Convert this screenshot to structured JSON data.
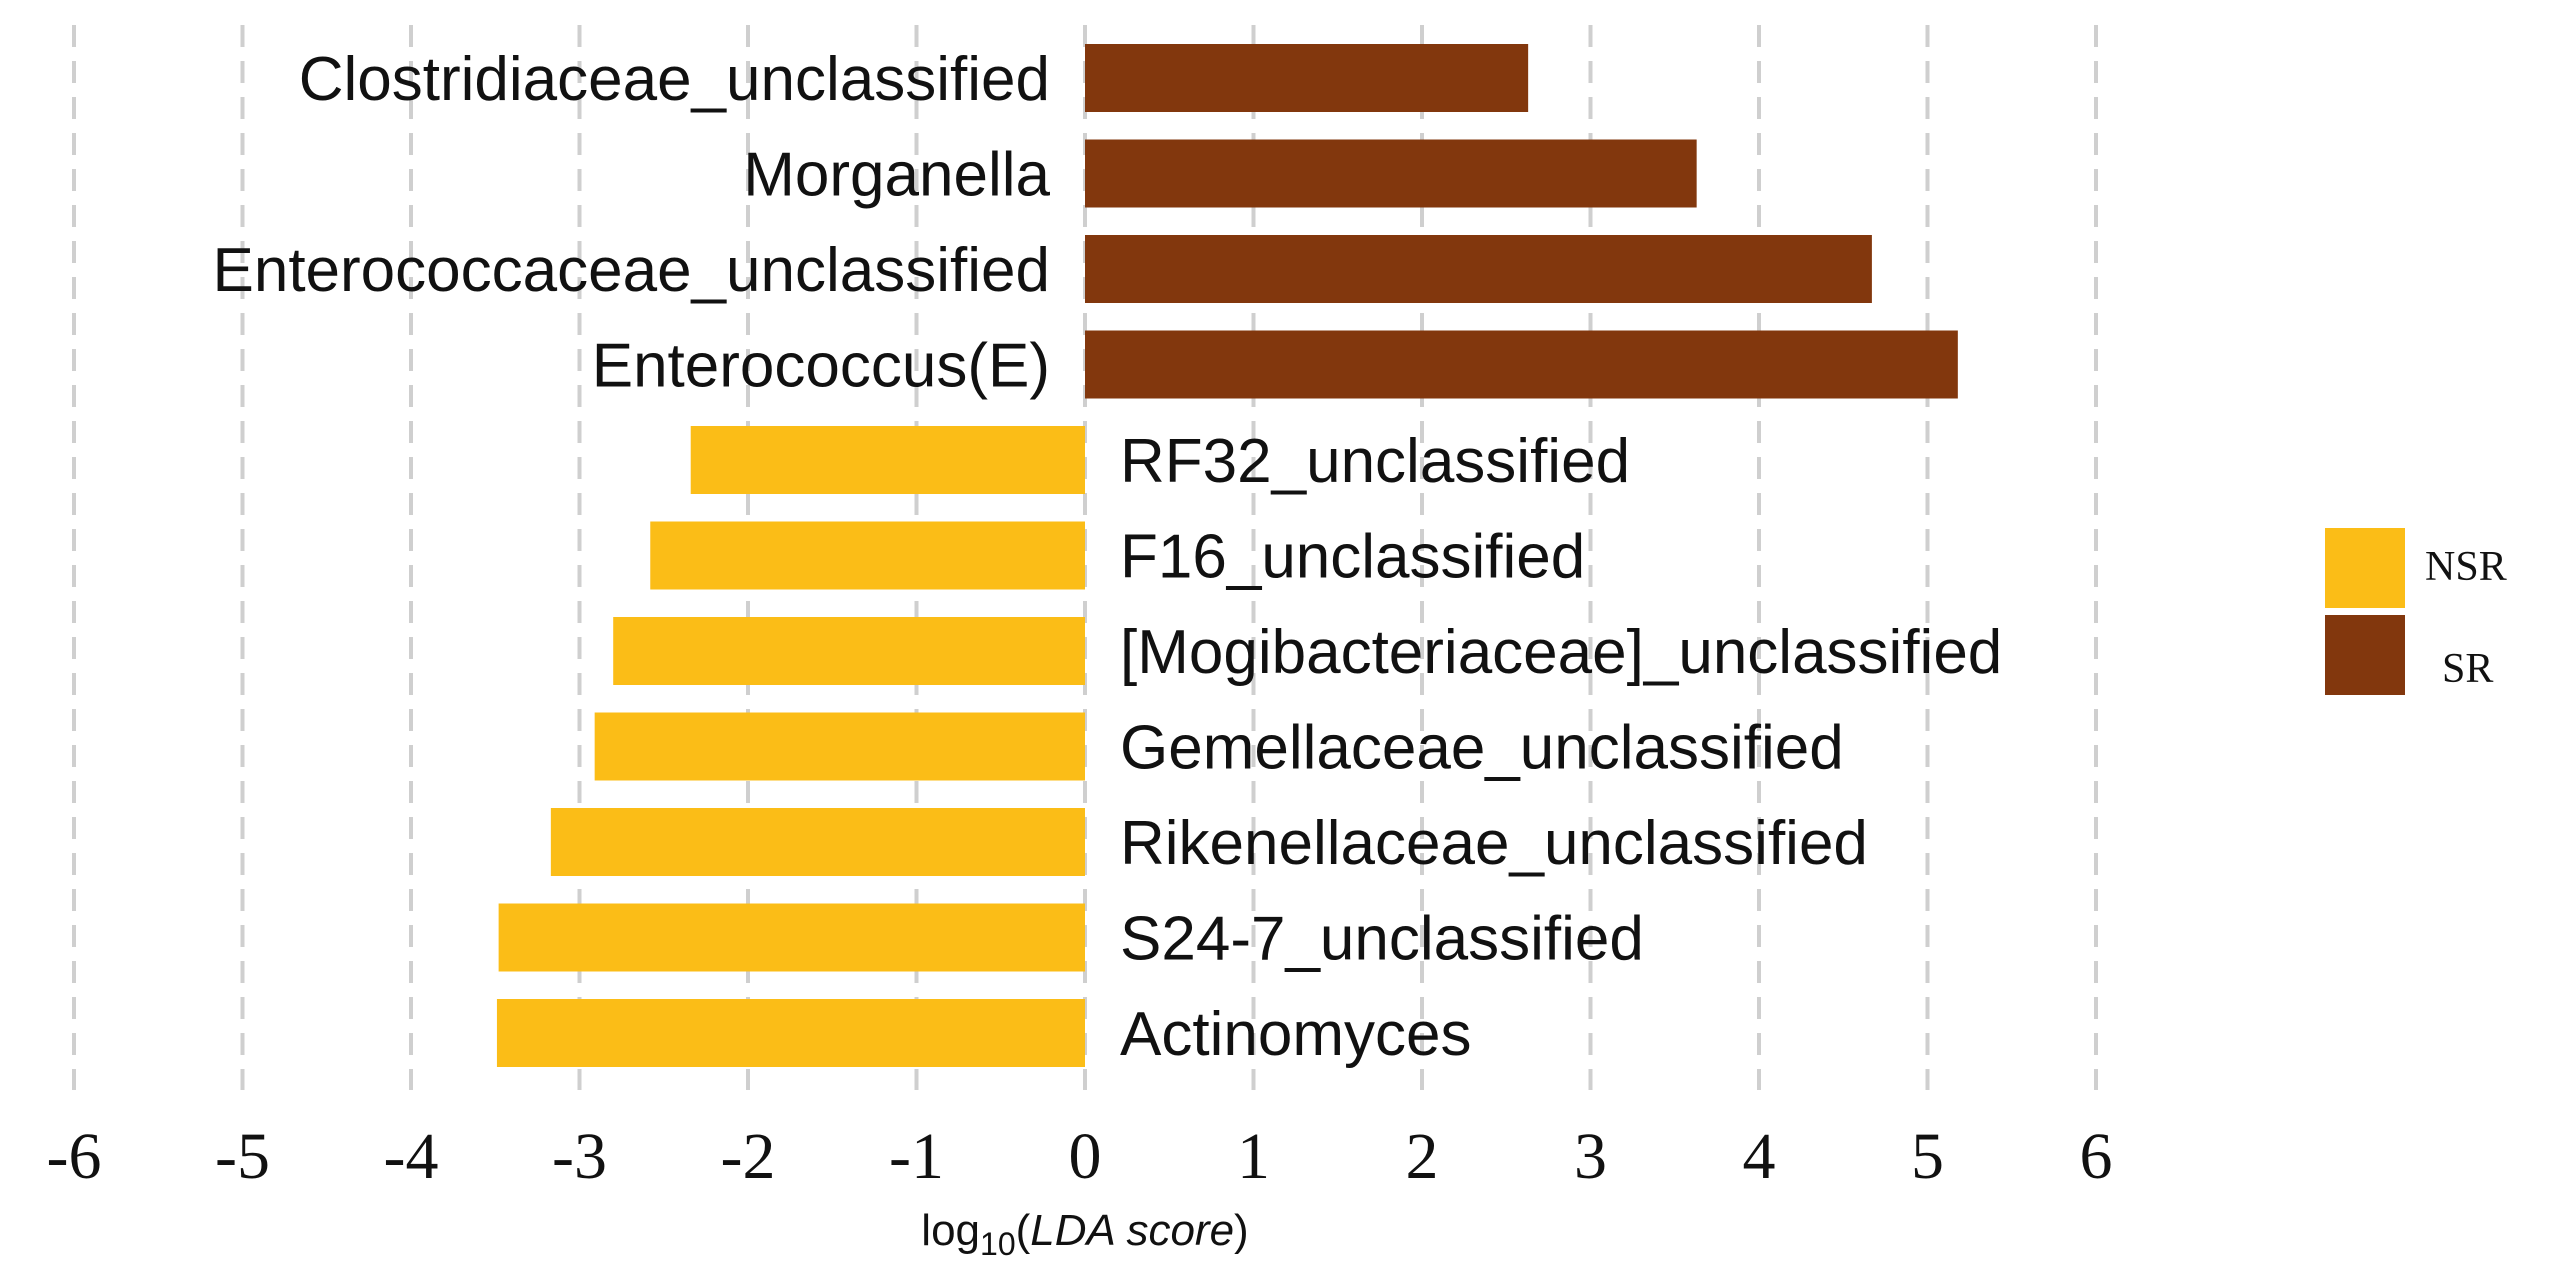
{
  "chart_data": {
    "type": "bar",
    "orientation": "horizontal",
    "categories": [
      "Clostridiaceae_unclassified",
      "Morganella",
      "Enterococcaceae_unclassified",
      "Enterococcus(E)",
      "RF32_unclassified",
      "F16_unclassified",
      "[Mogibacteriaceae]_unclassified",
      "Gemellaceae_unclassified",
      "Rikenellaceae_unclassified",
      "S24-7_unclassified",
      "Actinomyces"
    ],
    "values": [
      2.63,
      3.63,
      4.67,
      5.18,
      -2.34,
      -2.58,
      -2.8,
      -2.91,
      -3.17,
      -3.48,
      -3.49
    ],
    "groups": [
      "SR",
      "SR",
      "SR",
      "SR",
      "NSR",
      "NSR",
      "NSR",
      "NSR",
      "NSR",
      "NSR",
      "NSR"
    ],
    "xlim": [
      -6,
      6
    ],
    "xticks": [
      "-6",
      "-5",
      "-4",
      "-3",
      "-2",
      "-1",
      "0",
      "1",
      "2",
      "3",
      "4",
      "5",
      "6"
    ],
    "xlabel": {
      "prefix": "log",
      "sub": "10",
      "open": "(",
      "italic": "LDA score",
      "close": ")"
    },
    "grid": true,
    "legend": {
      "placement": "right",
      "items": [
        {
          "label": "NSR",
          "color": "#FBBD17"
        },
        {
          "label": "SR",
          "color": "#82370D"
        }
      ]
    }
  }
}
